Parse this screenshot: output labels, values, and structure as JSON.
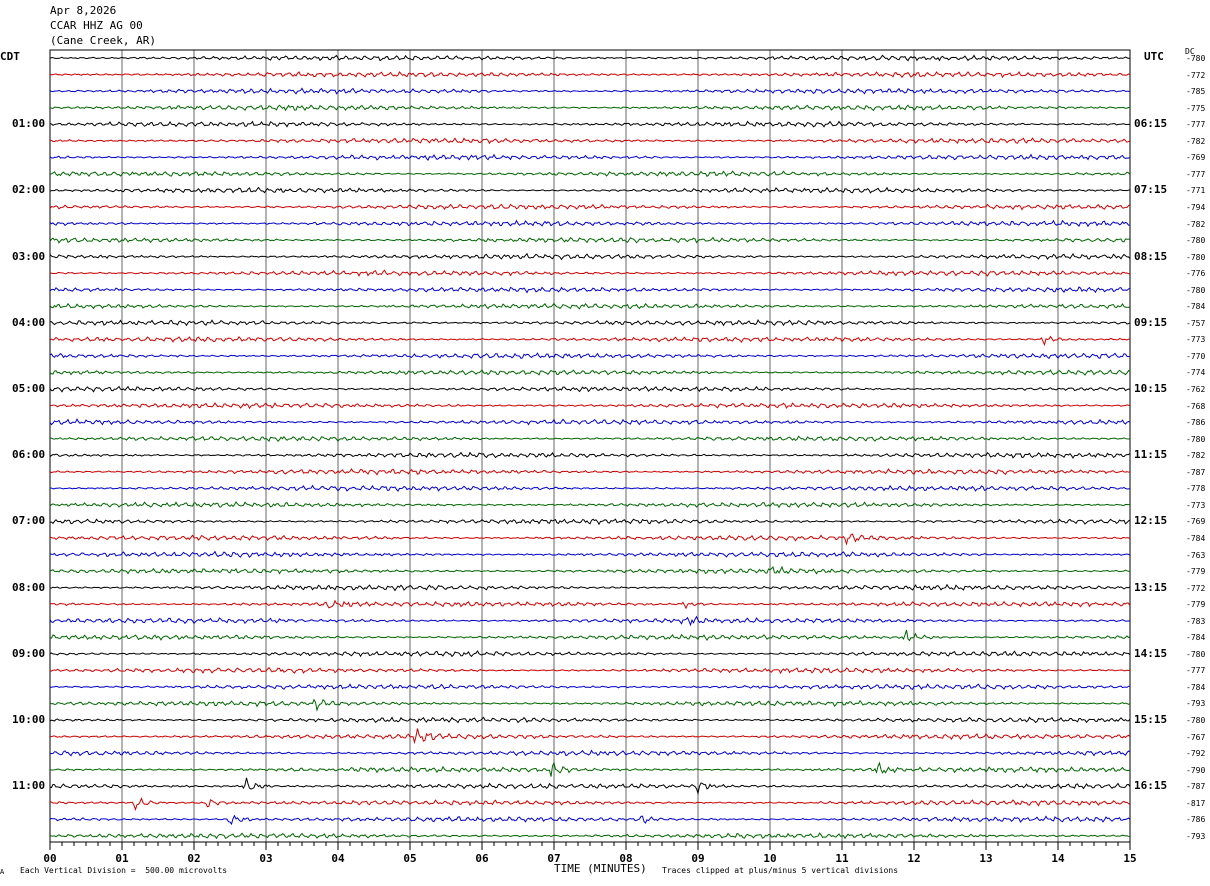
{
  "header": {
    "date": "Apr 8,2026",
    "station": "CCAR HHZ AG 00",
    "location": "(Cane Creek, AR)"
  },
  "left_timezone": "CDT",
  "right_timezone": "UTC",
  "dc_header": "DC",
  "colors": {
    "cycle": [
      "#000000",
      "#cc0000",
      "#0000cc",
      "#006600"
    ],
    "grid": "#000000"
  },
  "chart_data": {
    "type": "line",
    "title": "CCAR HHZ AG 00",
    "xlabel": "TIME (MINUTES)",
    "ylabel": "",
    "x_ticks": [
      "00",
      "01",
      "02",
      "03",
      "04",
      "05",
      "06",
      "07",
      "08",
      "09",
      "10",
      "11",
      "12",
      "13",
      "14",
      "15"
    ],
    "xlim": [
      0,
      15
    ],
    "traces_per_hour": 4,
    "trace_count": 48,
    "left_hour_labels": [
      "01:00",
      "02:00",
      "03:00",
      "04:00",
      "05:00",
      "06:00",
      "07:00",
      "08:00",
      "09:00",
      "10:00",
      "11:00"
    ],
    "right_hour_labels": [
      "06:15",
      "07:15",
      "08:15",
      "09:15",
      "10:15",
      "11:15",
      "12:15",
      "13:15",
      "14:15",
      "15:15",
      "16:15"
    ],
    "dc_offsets": [
      -780,
      -772,
      -785,
      -775,
      -777,
      -782,
      -769,
      -777,
      -771,
      -794,
      -782,
      -780,
      -780,
      -776,
      -780,
      -784,
      -757,
      -773,
      -770,
      -774,
      -762,
      -768,
      -786,
      -780,
      -782,
      -787,
      -778,
      -773,
      -769,
      -784,
      -763,
      -779,
      -772,
      -779,
      -783,
      -784,
      -780,
      -777,
      -784,
      -793,
      -780,
      -767,
      -792,
      -790,
      -787,
      -817,
      -786,
      -793
    ],
    "events": [
      {
        "trace": 17,
        "minute": 13.8,
        "strength": 1.4
      },
      {
        "trace": 29,
        "minute": 11.1,
        "strength": 1.5
      },
      {
        "trace": 31,
        "minute": 10.0,
        "strength": 1.2
      },
      {
        "trace": 33,
        "minute": 3.9,
        "strength": 1.5
      },
      {
        "trace": 33,
        "minute": 8.8,
        "strength": 1.3
      },
      {
        "trace": 34,
        "minute": 8.8,
        "strength": 1.5
      },
      {
        "trace": 35,
        "minute": 11.9,
        "strength": 2.0
      },
      {
        "trace": 39,
        "minute": 3.7,
        "strength": 1.3
      },
      {
        "trace": 41,
        "minute": 5.1,
        "strength": 1.8
      },
      {
        "trace": 43,
        "minute": 7.0,
        "strength": 1.7
      },
      {
        "trace": 43,
        "minute": 11.5,
        "strength": 1.6
      },
      {
        "trace": 44,
        "minute": 2.7,
        "strength": 3.2
      },
      {
        "trace": 44,
        "minute": 9.0,
        "strength": 1.8
      },
      {
        "trace": 45,
        "minute": 1.2,
        "strength": 2.2
      },
      {
        "trace": 45,
        "minute": 2.2,
        "strength": 1.3
      },
      {
        "trace": 46,
        "minute": 2.5,
        "strength": 1.6
      },
      {
        "trace": 46,
        "minute": 8.2,
        "strength": 1.3
      }
    ]
  },
  "footer": {
    "scale_note": "Each Vertical Division =  500.00 microvolts",
    "axis_title": "TIME (MINUTES)",
    "clip_note": "Traces clipped at plus/minus 5 vertical divisions",
    "corner_mark": "A"
  }
}
